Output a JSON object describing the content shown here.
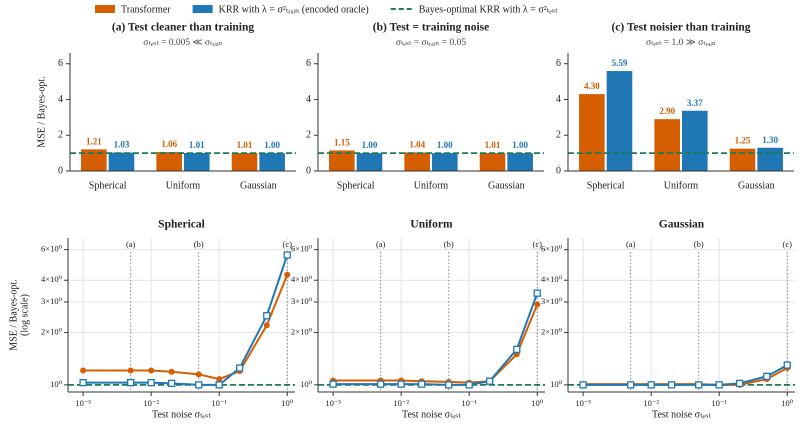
{
  "chart_data": [
    {
      "type": "bar",
      "title": "(a) Test cleaner than training",
      "subtitle": "σₜₑₛₜ = 0.005 ≪ σₜᵣₐᵢₙ",
      "ylabel": [
        "MSE / Bayes-opt."
      ],
      "categories": [
        "Spherical",
        "Uniform",
        "Gaussian"
      ],
      "series": [
        {
          "name": "Transformer",
          "color": "#d55e00",
          "values": [
            1.21,
            1.06,
            1.01
          ],
          "value_labels": [
            "1.21",
            "1.06",
            "1.01"
          ]
        },
        {
          "name": "KRR with λ = σ²ₜᵣₐᵢₙ (encoded oracle)",
          "color": "#1f77b4",
          "values": [
            1.03,
            1.01,
            1
          ],
          "value_labels": [
            "1.03",
            "1.01",
            "1.00"
          ]
        }
      ],
      "reference": {
        "name": "Bayes-optimal KRR with λ = σ²ₜₑₛₜ",
        "value": 1,
        "color": "#1b7a5a"
      },
      "ylim": [
        0,
        6.6
      ],
      "yticks": [
        0,
        2,
        4,
        6
      ]
    },
    {
      "type": "bar",
      "title": "(b) Test = training noise",
      "subtitle": "σₜₑₛₜ = σₜᵣₐᵢₙ = 0.05",
      "categories": [
        "Spherical",
        "Uniform",
        "Gaussian"
      ],
      "series": [
        {
          "name": "Transformer",
          "color": "#d55e00",
          "values": [
            1.15,
            1.04,
            1.01
          ],
          "value_labels": [
            "1.15",
            "1.04",
            "1.01"
          ]
        },
        {
          "name": "KRR with λ = σ²ₜᵣₐᵢₙ (encoded oracle)",
          "color": "#1f77b4",
          "values": [
            1,
            1,
            1
          ],
          "value_labels": [
            "1.00",
            "1.00",
            "1.00"
          ]
        }
      ],
      "reference": {
        "value": 1,
        "color": "#1b7a5a"
      },
      "ylim": [
        0,
        6.6
      ],
      "yticks": [
        0,
        2,
        4,
        6
      ]
    },
    {
      "type": "bar",
      "title": "(c) Test noisier than training",
      "subtitle": "σₜₑₛₜ = 1.0 ≫ σₜᵣₐᵢₙ",
      "categories": [
        "Spherical",
        "Uniform",
        "Gaussian"
      ],
      "series": [
        {
          "name": "Transformer",
          "color": "#d55e00",
          "values": [
            4.3,
            2.9,
            1.25
          ],
          "value_labels": [
            "4.30",
            "2.90",
            "1.25"
          ]
        },
        {
          "name": "KRR with λ = σ²ₜᵣₐᵢₙ (encoded oracle)",
          "color": "#1f77b4",
          "values": [
            5.59,
            3.37,
            1.3
          ],
          "value_labels": [
            "5.59",
            "3.37",
            "1.30"
          ]
        }
      ],
      "reference": {
        "value": 1,
        "color": "#1b7a5a"
      },
      "ylim": [
        0,
        6.6
      ],
      "yticks": [
        0,
        2,
        4,
        6
      ]
    },
    {
      "type": "line",
      "title": "Spherical",
      "ylabel": [
        "MSE / Bayes-opt.",
        "(log scale)"
      ],
      "xlabel": "Test noise σₜₑₛₜ",
      "x": [
        0.001,
        0.005,
        0.01,
        0.02,
        0.05,
        0.1,
        0.2,
        0.5,
        1.0
      ],
      "series": [
        {
          "name": "Transformer",
          "color": "#d55e00",
          "values": [
            1.21,
            1.21,
            1.21,
            1.19,
            1.15,
            1.08,
            1.2,
            2.2,
            4.3
          ]
        },
        {
          "name": "KRR with λ = σ²ₜᵣₐᵢₙ (encoded oracle)",
          "color": "#1f77b4",
          "values": [
            1.03,
            1.03,
            1.03,
            1.02,
            1.0,
            1.0,
            1.25,
            2.5,
            5.59
          ]
        }
      ],
      "reference": {
        "value": 1,
        "color": "#1b7a5a"
      },
      "annotations": [
        {
          "x": 0.005,
          "label": "(a)"
        },
        {
          "x": 0.05,
          "label": "(b)"
        },
        {
          "x": 1.0,
          "label": "(c)"
        }
      ],
      "log_x": true,
      "log_y": true,
      "grid": true,
      "xlim": [
        0.0006,
        1.3
      ],
      "xticks": [
        {
          "value": 0.001,
          "label": "10⁻³"
        },
        {
          "value": 0.01,
          "label": "10⁻²"
        },
        {
          "value": 0.1,
          "label": "10⁻¹"
        },
        {
          "value": 1,
          "label": "10⁰"
        }
      ],
      "ylim": [
        0.91,
        7.0
      ],
      "yticks": [
        {
          "value": 1,
          "label": "10⁰"
        },
        {
          "value": 2,
          "label": "2×10⁰"
        },
        {
          "value": 3,
          "label": "3×10⁰"
        },
        {
          "value": 4,
          "label": "4×10⁰"
        },
        {
          "value": 6,
          "label": "6×10⁰"
        }
      ]
    },
    {
      "type": "line",
      "title": "Uniform",
      "xlabel": "Test noise σₜₑₛₜ",
      "x": [
        0.001,
        0.005,
        0.01,
        0.02,
        0.05,
        0.1,
        0.2,
        0.5,
        1.0
      ],
      "series": [
        {
          "name": "Transformer",
          "color": "#d55e00",
          "values": [
            1.06,
            1.06,
            1.06,
            1.05,
            1.04,
            1.03,
            1.05,
            1.5,
            2.9
          ]
        },
        {
          "name": "KRR with λ = σ²ₜᵣₐᵢₙ (encoded oracle)",
          "color": "#1f77b4",
          "values": [
            1.01,
            1.01,
            1.01,
            1.01,
            1.0,
            1.0,
            1.05,
            1.6,
            3.37
          ]
        }
      ],
      "reference": {
        "value": 1,
        "color": "#1b7a5a"
      },
      "annotations": [
        {
          "x": 0.005,
          "label": "(a)"
        },
        {
          "x": 0.05,
          "label": "(b)"
        },
        {
          "x": 1.0,
          "label": "(c)"
        }
      ],
      "log_x": true,
      "log_y": true,
      "grid": true,
      "xlim": [
        0.0006,
        1.3
      ],
      "xticks": [
        {
          "value": 0.001,
          "label": "10⁻³"
        },
        {
          "value": 0.01,
          "label": "10⁻²"
        },
        {
          "value": 0.1,
          "label": "10⁻¹"
        },
        {
          "value": 1,
          "label": "10⁰"
        }
      ],
      "ylim": [
        0.91,
        7.0
      ],
      "yticks": [
        {
          "value": 1,
          "label": "10⁰"
        },
        {
          "value": 2,
          "label": "2×10⁰"
        },
        {
          "value": 3,
          "label": "3×10⁰"
        },
        {
          "value": 4,
          "label": "4×10⁰"
        },
        {
          "value": 6,
          "label": "6×10⁰"
        }
      ]
    },
    {
      "type": "line",
      "title": "Gaussian",
      "xlabel": "Test noise σₜₑₛₜ",
      "x": [
        0.001,
        0.005,
        0.01,
        0.02,
        0.05,
        0.1,
        0.2,
        0.5,
        1.0
      ],
      "series": [
        {
          "name": "Transformer",
          "color": "#d55e00",
          "values": [
            1.01,
            1.01,
            1.01,
            1.01,
            1.01,
            1.0,
            1.0,
            1.08,
            1.25
          ]
        },
        {
          "name": "KRR with λ = σ²ₜᵣₐᵢₙ (encoded oracle)",
          "color": "#1f77b4",
          "values": [
            1.0,
            1.0,
            1.0,
            1.0,
            1.0,
            1.0,
            1.02,
            1.12,
            1.3
          ]
        }
      ],
      "reference": {
        "value": 1,
        "color": "#1b7a5a"
      },
      "annotations": [
        {
          "x": 0.005,
          "label": "(a)"
        },
        {
          "x": 0.05,
          "label": "(b)"
        },
        {
          "x": 1.0,
          "label": "(c)"
        }
      ],
      "log_x": true,
      "log_y": true,
      "grid": true,
      "xlim": [
        0.0006,
        1.3
      ],
      "xticks": [
        {
          "value": 0.001,
          "label": "10⁻³"
        },
        {
          "value": 0.01,
          "label": "10⁻²"
        },
        {
          "value": 0.1,
          "label": "10⁻¹"
        },
        {
          "value": 1,
          "label": "10⁰"
        }
      ],
      "ylim": [
        0.91,
        7.0
      ],
      "yticks": [
        {
          "value": 1,
          "label": "10⁰"
        },
        {
          "value": 2,
          "label": "2×10⁰"
        },
        {
          "value": 3,
          "label": "3×10⁰"
        },
        {
          "value": 4,
          "label": "4×10⁰"
        },
        {
          "value": 6,
          "label": "6×10⁰"
        }
      ]
    }
  ]
}
